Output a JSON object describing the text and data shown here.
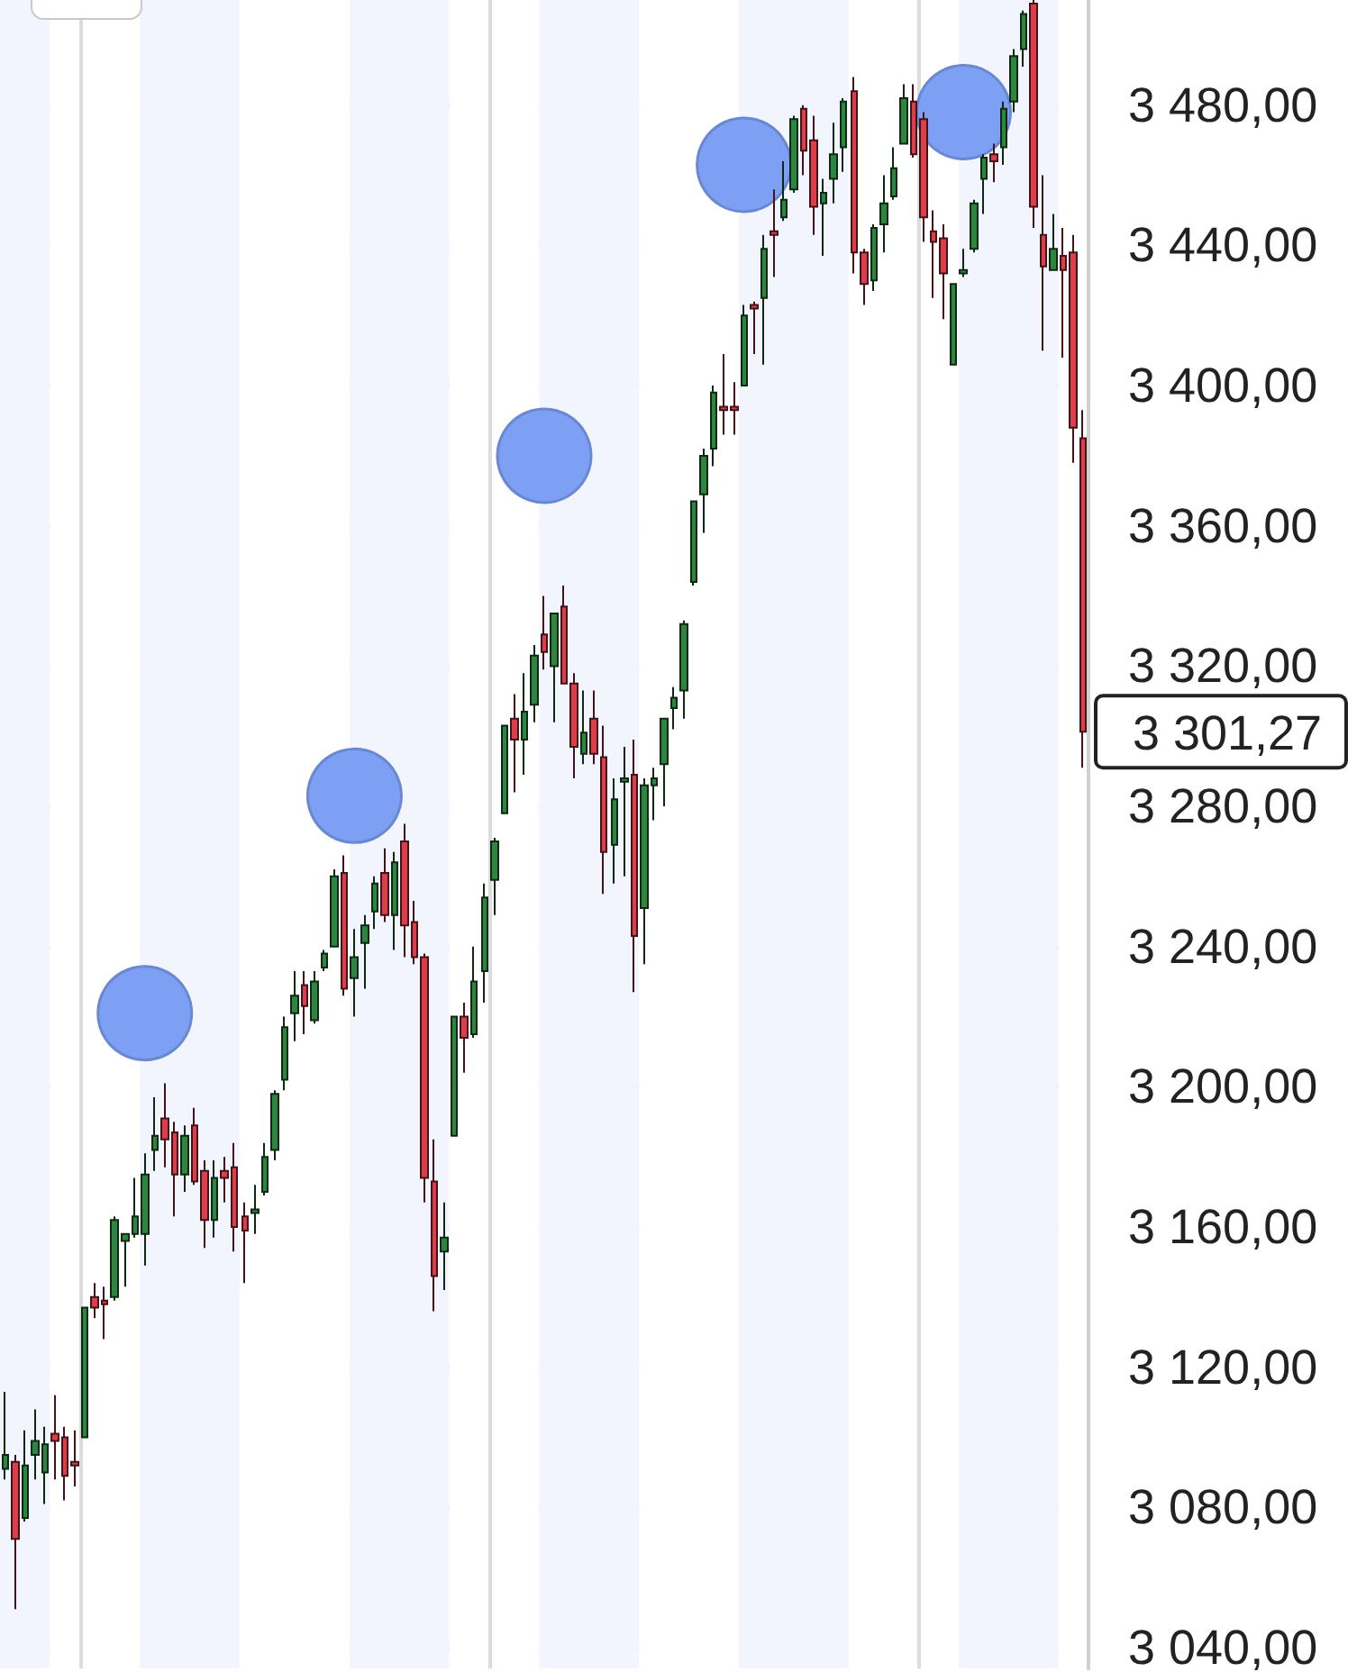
{
  "chart_data": {
    "type": "candlestick",
    "categories": [
      null,
      null,
      null,
      null,
      null,
      null,
      null,
      null,
      null,
      null,
      null,
      null,
      null,
      null,
      null,
      null,
      null,
      null,
      null,
      null,
      null,
      null,
      null,
      null,
      null,
      null,
      null,
      null,
      null,
      null,
      null,
      null,
      null,
      null,
      null,
      null,
      null,
      null,
      null,
      null,
      null,
      null,
      null,
      null,
      null,
      null,
      null,
      null,
      null,
      null,
      null,
      null,
      null,
      null,
      null,
      null,
      null,
      null,
      null,
      null,
      null,
      null,
      null,
      null,
      null,
      null,
      null,
      null,
      null,
      null,
      null,
      null,
      null,
      null,
      null,
      null,
      null,
      null,
      null,
      null,
      null,
      null,
      null,
      null,
      null,
      null,
      null,
      null,
      null,
      null,
      null,
      null,
      null,
      null,
      null,
      null,
      null,
      null,
      null,
      null,
      null,
      null,
      null,
      null,
      null,
      null,
      null,
      null,
      null
    ],
    "ohlc": [
      [
        3091,
        3113,
        3088,
        3095
      ],
      [
        3093,
        3095,
        3051,
        3071
      ],
      [
        3077,
        3102,
        3076,
        3092
      ],
      [
        3095,
        3108,
        3088,
        3099
      ],
      [
        3090,
        3103,
        3081,
        3098
      ],
      [
        3101,
        3112,
        3088,
        3099
      ],
      [
        3100,
        3103,
        3082,
        3089
      ],
      [
        3093,
        3102,
        3086,
        3092
      ],
      [
        3100,
        3137,
        3100,
        3137
      ],
      [
        3140,
        3144,
        3134,
        3137
      ],
      [
        3139,
        3143,
        3128,
        3138
      ],
      [
        3140,
        3163,
        3139,
        3162
      ],
      [
        3156,
        3158,
        3143,
        3158
      ],
      [
        3158,
        3174,
        3157,
        3163
      ],
      [
        3158,
        3181,
        3149,
        3175
      ],
      [
        3182,
        3197,
        3176,
        3186
      ],
      [
        3191,
        3201,
        3177,
        3185
      ],
      [
        3187,
        3190,
        3163,
        3175
      ],
      [
        3175,
        3189,
        3170,
        3186
      ],
      [
        3189,
        3194,
        3172,
        3173
      ],
      [
        3176,
        3179,
        3154,
        3162
      ],
      [
        3162,
        3179,
        3157,
        3174
      ],
      [
        3176,
        3180,
        3167,
        3174
      ],
      [
        3177,
        3184,
        3153,
        3160
      ],
      [
        3163,
        3167,
        3144,
        3159
      ],
      [
        3164,
        3172,
        3158,
        3165
      ],
      [
        3170,
        3184,
        3169,
        3180
      ],
      [
        3182,
        3199,
        3179,
        3198
      ],
      [
        3202,
        3220,
        3199,
        3217
      ],
      [
        3221,
        3233,
        3213,
        3226
      ],
      [
        3229,
        3233,
        3215,
        3223
      ],
      [
        3219,
        3233,
        3218,
        3230
      ],
      [
        3234,
        3239,
        3233,
        3238
      ],
      [
        3240,
        3262,
        3240,
        3260
      ],
      [
        3261,
        3266,
        3226,
        3228
      ],
      [
        3231,
        3245,
        3220,
        3237
      ],
      [
        3241,
        3249,
        3228,
        3246
      ],
      [
        3250,
        3260,
        3245,
        3258
      ],
      [
        3261,
        3268,
        3247,
        3249
      ],
      [
        3249,
        3267,
        3239,
        3264
      ],
      [
        3270,
        3275,
        3237,
        3246
      ],
      [
        3247,
        3253,
        3235,
        3237
      ],
      [
        3237,
        3238,
        3167,
        3174
      ],
      [
        3173,
        3185,
        3136,
        3146
      ],
      [
        3153,
        3167,
        3142,
        3157
      ],
      [
        3186,
        3220,
        3186,
        3220
      ],
      [
        3220,
        3224,
        3204,
        3214
      ],
      [
        3215,
        3240,
        3214,
        3230
      ],
      [
        3233,
        3258,
        3224,
        3254
      ],
      [
        3259,
        3271,
        3249,
        3270
      ],
      [
        3278,
        3303,
        3278,
        3303
      ],
      [
        3305,
        3312,
        3284,
        3299
      ],
      [
        3299,
        3318,
        3289,
        3307
      ],
      [
        3309,
        3326,
        3304,
        3323
      ],
      [
        3329,
        3340,
        3319,
        3324
      ],
      [
        3320,
        3335,
        3304,
        3335
      ],
      [
        3337,
        3343,
        3315,
        3315
      ],
      [
        3315,
        3318,
        3288,
        3297
      ],
      [
        3295,
        3313,
        3292,
        3301
      ],
      [
        3305,
        3313,
        3292,
        3295
      ],
      [
        3294,
        3303,
        3255,
        3267
      ],
      [
        3269,
        3288,
        3258,
        3282
      ],
      [
        3287,
        3297,
        3260,
        3288
      ],
      [
        3289,
        3299,
        3227,
        3243
      ],
      [
        3251,
        3288,
        3235,
        3286
      ],
      [
        3286,
        3291,
        3276,
        3288
      ],
      [
        3292,
        3305,
        3280,
        3305
      ],
      [
        3308,
        3314,
        3302,
        3311
      ],
      [
        3313,
        3333,
        3305,
        3332
      ],
      [
        3344,
        3367,
        3343,
        3367
      ],
      [
        3369,
        3382,
        3358,
        3380
      ],
      [
        3382,
        3400,
        3377,
        3398
      ],
      [
        3394,
        3409,
        3386,
        3393
      ],
      [
        3394,
        3401,
        3386,
        3393
      ],
      [
        3400,
        3423,
        3400,
        3420
      ],
      [
        3423,
        3424,
        3409,
        3422
      ],
      [
        3425,
        3443,
        3406,
        3439
      ],
      [
        3444,
        3456,
        3431,
        3443
      ],
      [
        3448,
        3464,
        3447,
        3453
      ],
      [
        3456,
        3477,
        3455,
        3476
      ],
      [
        3479,
        3480,
        3460,
        3467
      ],
      [
        3470,
        3477,
        3443,
        3451
      ],
      [
        3452,
        3459,
        3437,
        3455
      ],
      [
        3459,
        3475,
        3452,
        3466
      ],
      [
        3468,
        3482,
        3461,
        3481
      ],
      [
        3484,
        3488,
        3432,
        3438
      ],
      [
        3438,
        3439,
        3423,
        3429
      ],
      [
        3430,
        3446,
        3427,
        3445
      ],
      [
        3446,
        3460,
        3438,
        3452
      ],
      [
        3454,
        3468,
        3453,
        3462
      ],
      [
        3469,
        3486,
        3469,
        3482
      ],
      [
        3481,
        3486,
        3465,
        3466
      ],
      [
        3476,
        3478,
        3441,
        3448
      ],
      [
        3444,
        3450,
        3425,
        3441
      ],
      [
        3442,
        3446,
        3419,
        3432
      ],
      [
        3406,
        3429,
        3406,
        3429
      ],
      [
        3432,
        3439,
        3431,
        3433
      ],
      [
        3439,
        3453,
        3438,
        3452
      ],
      [
        3459,
        3466,
        3449,
        3465
      ],
      [
        3466,
        3469,
        3458,
        3464
      ],
      [
        3468,
        3481,
        3463,
        3479
      ],
      [
        3481,
        3496,
        3478,
        3494
      ],
      [
        3496,
        3507,
        3491,
        3506
      ],
      [
        3509,
        3510,
        3445,
        3451
      ],
      [
        3443,
        3460,
        3410,
        3434
      ],
      [
        3433,
        3449,
        3433,
        3439
      ],
      [
        3437,
        3445,
        3408,
        3433
      ],
      [
        3438,
        3443,
        3378,
        3388
      ],
      [
        3385,
        3393,
        3291,
        3301.27
      ]
    ],
    "colors": [
      "#2e8540",
      "#dc3f4c",
      "#2e8540",
      "#2e8540",
      "#2e8540",
      "#dc3f4c",
      "#dc3f4c",
      "#dc3f4c",
      "#2e8540",
      "#dc3f4c",
      "#dc3f4c",
      "#2e8540",
      "#2e8540",
      "#2e8540",
      "#2e8540",
      "#2e8540",
      "#dc3f4c",
      "#dc3f4c",
      "#2e8540",
      "#dc3f4c",
      "#dc3f4c",
      "#2e8540",
      "#dc3f4c",
      "#dc3f4c",
      "#dc3f4c",
      "#2e8540",
      "#2e8540",
      "#2e8540",
      "#2e8540",
      "#2e8540",
      "#dc3f4c",
      "#2e8540",
      "#2e8540",
      "#2e8540",
      "#dc3f4c",
      "#2e8540",
      "#2e8540",
      "#2e8540",
      "#dc3f4c",
      "#2e8540",
      "#dc3f4c",
      "#dc3f4c",
      "#dc3f4c",
      "#dc3f4c",
      "#2e8540",
      "#2e8540",
      "#dc3f4c",
      "#2e8540",
      "#2e8540",
      "#2e8540",
      "#2e8540",
      "#dc3f4c",
      "#2e8540",
      "#2e8540",
      "#dc3f4c",
      "#2e8540",
      "#dc3f4c",
      "#dc3f4c",
      "#2e8540",
      "#dc3f4c",
      "#dc3f4c",
      "#2e8540",
      "#2e8540",
      "#dc3f4c",
      "#2e8540",
      "#2e8540",
      "#2e8540",
      "#2e8540",
      "#2e8540",
      "#2e8540",
      "#2e8540",
      "#2e8540",
      "#dc3f4c",
      "#dc3f4c",
      "#2e8540",
      "#dc3f4c",
      "#2e8540",
      "#dc3f4c",
      "#2e8540",
      "#2e8540",
      "#dc3f4c",
      "#dc3f4c",
      "#2e8540",
      "#2e8540",
      "#2e8540",
      "#dc3f4c",
      "#dc3f4c",
      "#2e8540",
      "#2e8540",
      "#2e8540",
      "#2e8540",
      "#dc3f4c",
      "#dc3f4c",
      "#dc3f4c",
      "#dc3f4c",
      "#2e8540",
      "#2e8540",
      "#2e8540",
      "#2e8540",
      "#dc3f4c",
      "#2e8540",
      "#2e8540",
      "#2e8540",
      "#dc3f4c",
      "#dc3f4c",
      "#2e8540",
      "#dc3f4c",
      "#dc3f4c",
      "#dc3f4c"
    ],
    "series": [
      {
        "type": "scatter",
        "color": "#7da0f5",
        "marker": "circle",
        "values": [
          null,
          null,
          null,
          null,
          null,
          null,
          null,
          null,
          null,
          null,
          null,
          null,
          null,
          null,
          3221,
          null,
          null,
          null,
          null,
          null,
          null,
          null,
          null,
          null,
          null,
          null,
          null,
          null,
          null,
          null,
          null,
          null,
          null,
          null,
          null,
          3283,
          null,
          null,
          null,
          null,
          null,
          null,
          null,
          null,
          null,
          null,
          null,
          null,
          null,
          null,
          null,
          null,
          null,
          null,
          3380,
          null,
          null,
          null,
          null,
          null,
          null,
          null,
          null,
          null,
          null,
          null,
          null,
          null,
          null,
          null,
          null,
          null,
          null,
          null,
          3463,
          null,
          null,
          null,
          null,
          null,
          null,
          null,
          null,
          null,
          null,
          null,
          null,
          null,
          null,
          null,
          null,
          null,
          null,
          null,
          null,
          null,
          3478,
          null,
          null,
          null,
          null,
          null,
          null,
          null,
          null,
          null,
          null,
          null,
          null
        ]
      }
    ],
    "ylim": [
      3034,
      3510
    ],
    "yticks": [
      {
        "value": 3040,
        "label": "3 040,00"
      },
      {
        "value": 3080,
        "label": "3 080,00"
      },
      {
        "value": 3120,
        "label": "3 120,00"
      },
      {
        "value": 3160,
        "label": "3 160,00"
      },
      {
        "value": 3200,
        "label": "3 200,00"
      },
      {
        "value": 3240,
        "label": "3 240,00"
      },
      {
        "value": 3280,
        "label": "3 280,00"
      },
      {
        "value": 3320,
        "label": "3 320,00"
      },
      {
        "value": 3360,
        "label": "3 360,00"
      },
      {
        "value": 3400,
        "label": "3 400,00"
      },
      {
        "value": 3440,
        "label": "3 440,00"
      },
      {
        "value": 3480,
        "label": "3 480,00"
      }
    ],
    "annotations": [
      "3 301,27"
    ],
    "grid": "y",
    "tick_labels": "y"
  }
}
